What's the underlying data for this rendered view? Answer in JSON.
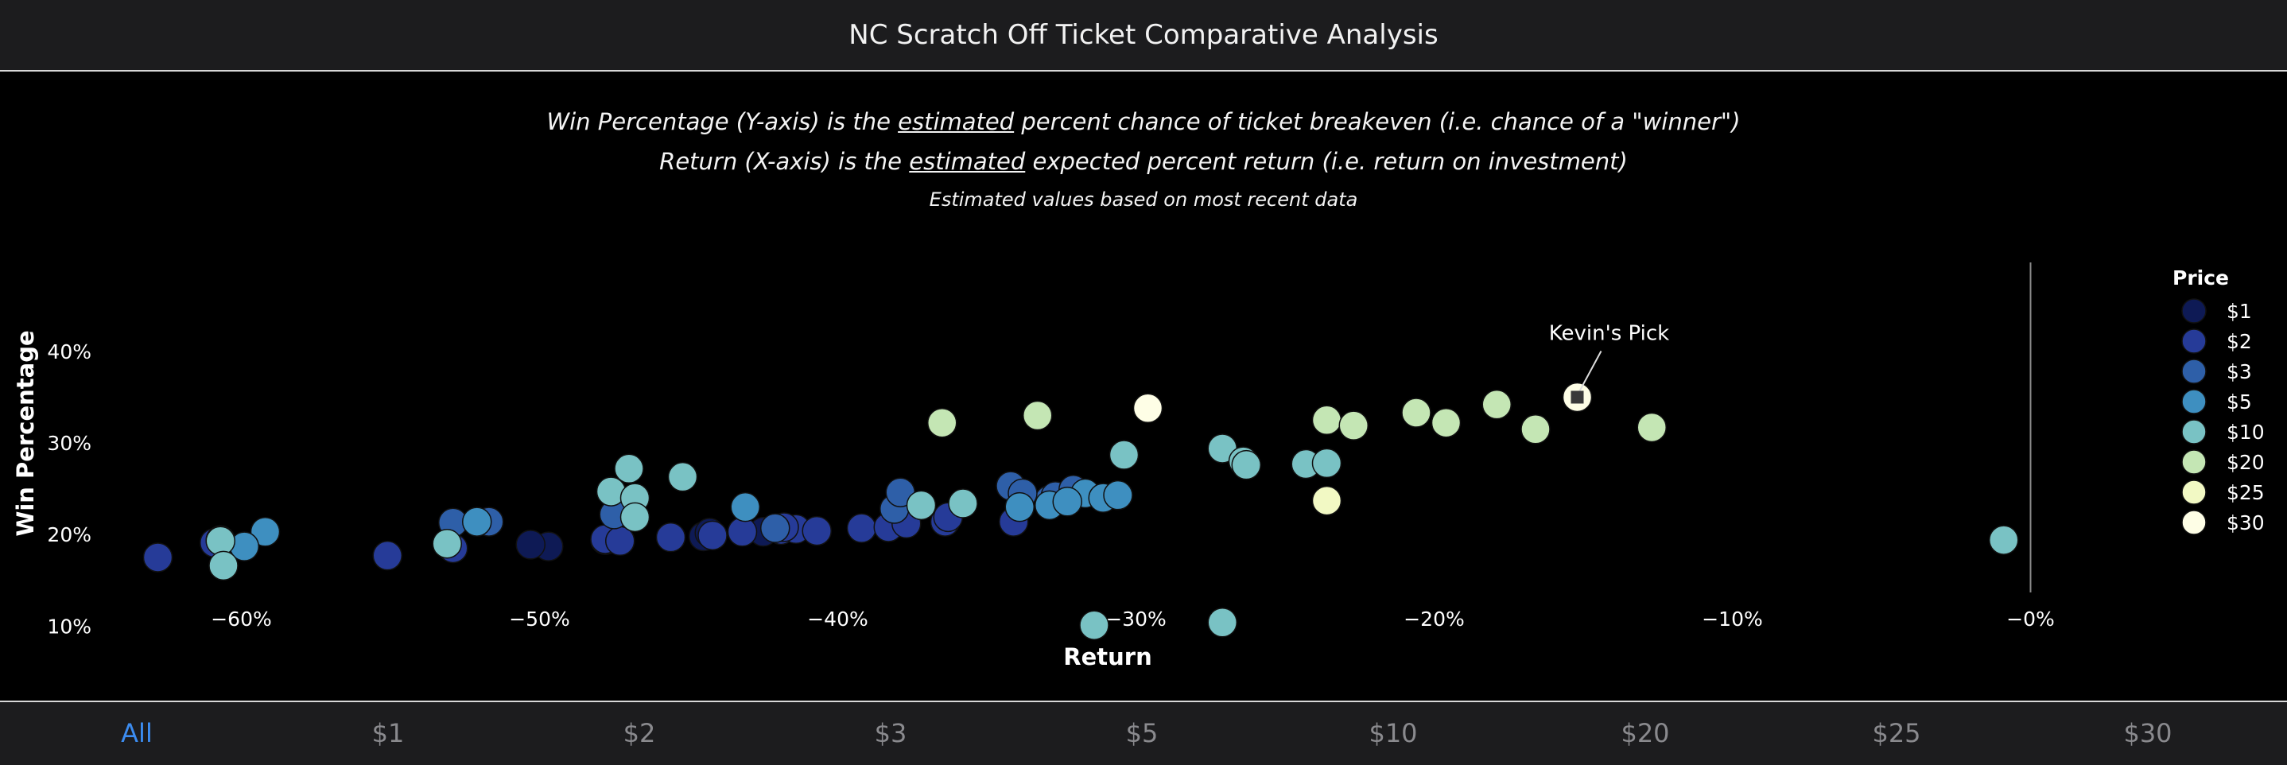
{
  "header": {
    "title": "NC Scratch Off Ticket Comparative Analysis"
  },
  "description": {
    "line1": {
      "pre": "Win Percentage (Y-axis) is the ",
      "em": "estimated",
      "post": " percent chance of ticket breakeven (i.e. chance of a \"winner\")"
    },
    "line2": {
      "pre": "Return (X-axis) is the ",
      "em": "estimated",
      "post": " expected percent return (i.e. return on investment)"
    },
    "line3": "Estimated values based on most recent data"
  },
  "chart_data": {
    "type": "scatter",
    "title": "",
    "xlabel": "Return",
    "ylabel": "Win Percentage",
    "xlim": [
      -0.655,
      0.03
    ],
    "ylim": [
      0.075,
      0.435
    ],
    "xticks": [
      -0.6,
      -0.5,
      -0.4,
      -0.3,
      -0.2,
      -0.1,
      0.0
    ],
    "xtick_labels": [
      "−60%",
      "−50%",
      "−40%",
      "−30%",
      "−20%",
      "−10%",
      "−0%"
    ],
    "yticks": [
      0.1,
      0.2,
      0.3,
      0.4
    ],
    "ytick_labels": [
      "10%",
      "20%",
      "30%",
      "40%"
    ],
    "breakeven_line_x": 0.0,
    "legend_title": "Price",
    "legend_position": "right",
    "annotation": {
      "text": "Kevin's Pick",
      "x": -0.152,
      "y": 0.35
    },
    "series": [
      {
        "name": "$1",
        "color": "#0e1a55",
        "points": [
          [
            -0.497,
            0.187
          ],
          [
            -0.478,
            0.194
          ],
          [
            -0.445,
            0.198
          ],
          [
            -0.443,
            0.202
          ],
          [
            -0.425,
            0.203
          ],
          [
            -0.503,
            0.189
          ]
        ]
      },
      {
        "name": "$2",
        "color": "#263b98",
        "points": [
          [
            -0.628,
            0.175
          ],
          [
            -0.609,
            0.191
          ],
          [
            -0.607,
            0.194
          ],
          [
            -0.551,
            0.177
          ],
          [
            -0.529,
            0.185
          ],
          [
            -0.478,
            0.195
          ],
          [
            -0.473,
            0.193
          ],
          [
            -0.456,
            0.197
          ],
          [
            -0.442,
            0.199
          ],
          [
            -0.432,
            0.203
          ],
          [
            -0.419,
            0.205
          ],
          [
            -0.414,
            0.206
          ],
          [
            -0.418,
            0.208
          ],
          [
            -0.407,
            0.204
          ],
          [
            -0.392,
            0.207
          ],
          [
            -0.383,
            0.208
          ],
          [
            -0.377,
            0.212
          ],
          [
            -0.364,
            0.214
          ],
          [
            -0.363,
            0.219
          ],
          [
            -0.341,
            0.214
          ]
        ]
      },
      {
        "name": "$3",
        "color": "#2e5fa8",
        "points": [
          [
            -0.529,
            0.213
          ],
          [
            -0.517,
            0.214
          ],
          [
            -0.475,
            0.222
          ],
          [
            -0.421,
            0.207
          ],
          [
            -0.381,
            0.228
          ],
          [
            -0.379,
            0.246
          ],
          [
            -0.342,
            0.253
          ],
          [
            -0.329,
            0.238
          ],
          [
            -0.327,
            0.242
          ],
          [
            -0.321,
            0.249
          ],
          [
            -0.338,
            0.245
          ]
        ]
      },
      {
        "name": "$5",
        "color": "#3e8fc0",
        "points": [
          [
            -0.592,
            0.203
          ],
          [
            -0.599,
            0.187
          ],
          [
            -0.521,
            0.214
          ],
          [
            -0.431,
            0.23
          ],
          [
            -0.329,
            0.232
          ],
          [
            -0.317,
            0.245
          ],
          [
            -0.311,
            0.24
          ],
          [
            -0.306,
            0.243
          ],
          [
            -0.323,
            0.236
          ],
          [
            -0.339,
            0.23
          ]
        ]
      },
      {
        "name": "$10",
        "color": "#79c2c4",
        "points": [
          [
            -0.607,
            0.193
          ],
          [
            -0.606,
            0.166
          ],
          [
            -0.531,
            0.19
          ],
          [
            -0.476,
            0.247
          ],
          [
            -0.47,
            0.272
          ],
          [
            -0.468,
            0.24
          ],
          [
            -0.468,
            0.219
          ],
          [
            -0.452,
            0.263
          ],
          [
            -0.372,
            0.232
          ],
          [
            -0.358,
            0.234
          ],
          [
            -0.314,
            0.101
          ],
          [
            -0.304,
            0.287
          ],
          [
            -0.271,
            0.104
          ],
          [
            -0.271,
            0.294
          ],
          [
            -0.264,
            0.28
          ],
          [
            -0.263,
            0.276
          ],
          [
            -0.243,
            0.277
          ],
          [
            -0.236,
            0.278
          ],
          [
            -0.009,
            0.194
          ]
        ]
      },
      {
        "name": "$20",
        "color": "#c4e6b4",
        "points": [
          [
            -0.365,
            0.322
          ],
          [
            -0.333,
            0.33
          ],
          [
            -0.236,
            0.325
          ],
          [
            -0.227,
            0.319
          ],
          [
            -0.206,
            0.333
          ],
          [
            -0.196,
            0.322
          ],
          [
            -0.179,
            0.342
          ],
          [
            -0.166,
            0.315
          ],
          [
            -0.127,
            0.317
          ]
        ]
      },
      {
        "name": "$25",
        "color": "#f2f9c4",
        "points": [
          [
            -0.236,
            0.237
          ]
        ]
      },
      {
        "name": "$30",
        "color": "#fefee6",
        "points": [
          [
            -0.296,
            0.338
          ],
          [
            -0.152,
            0.35
          ]
        ]
      }
    ]
  },
  "tabs": [
    {
      "label": "All",
      "active": true
    },
    {
      "label": "$1",
      "active": false
    },
    {
      "label": "$2",
      "active": false
    },
    {
      "label": "$3",
      "active": false
    },
    {
      "label": "$5",
      "active": false
    },
    {
      "label": "$10",
      "active": false
    },
    {
      "label": "$20",
      "active": false
    },
    {
      "label": "$25",
      "active": false
    },
    {
      "label": "$30",
      "active": false
    }
  ]
}
